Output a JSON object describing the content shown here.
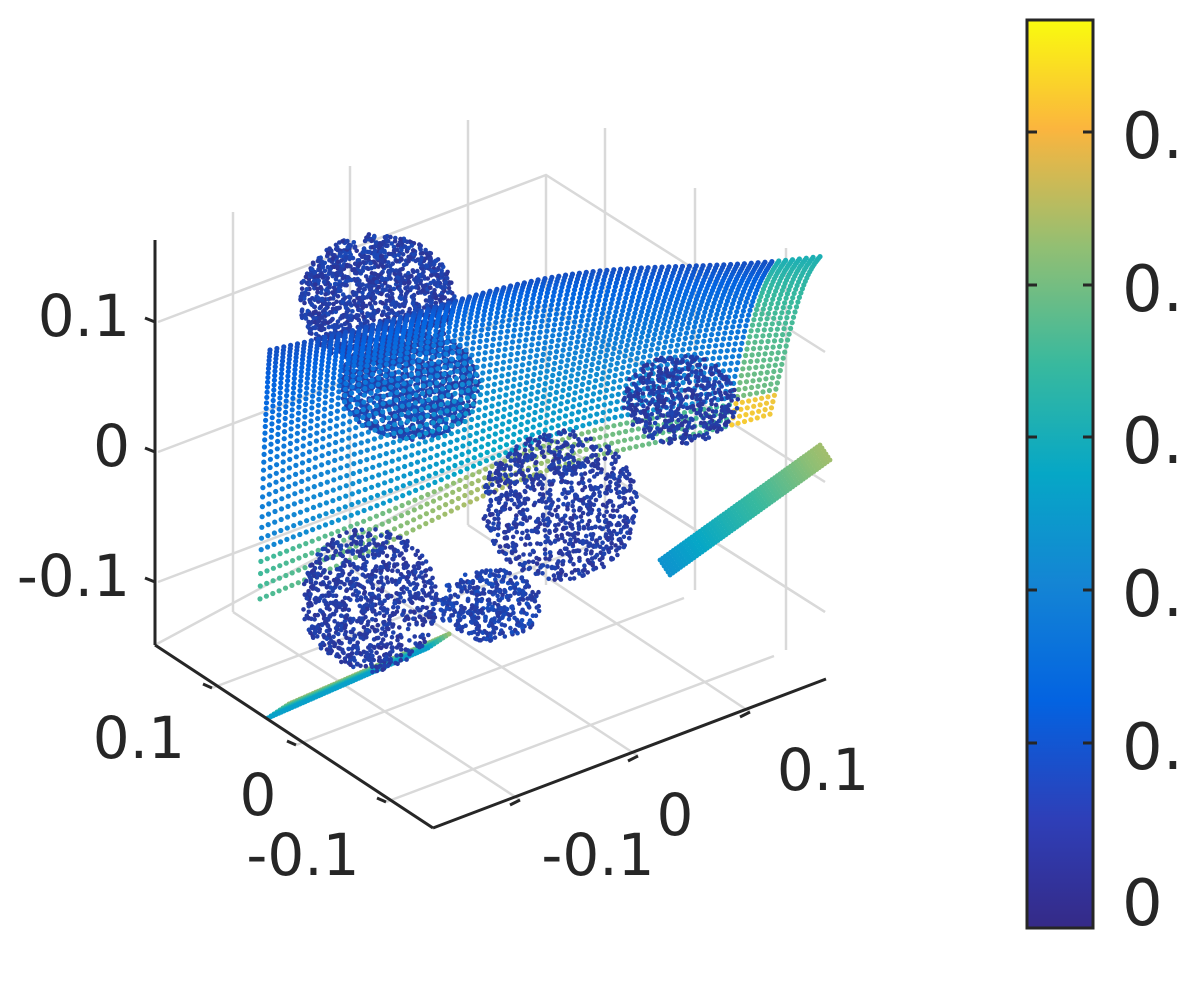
{
  "chart_data": {
    "type": "scatter",
    "title": "",
    "xlabel": "",
    "ylabel": "",
    "zlabel": "",
    "grid": true,
    "colormap": "parula",
    "colormap_stops": [
      "#352a87",
      "#0363e1",
      "#1485d4",
      "#06a7c6",
      "#38b99e",
      "#92bf73",
      "#d9ba56",
      "#fcce2e",
      "#f9fb0e"
    ],
    "axes": {
      "x": {
        "ticks": [
          -0.1,
          0,
          0.1
        ],
        "tick_labels": [
          "-0.1",
          "0",
          "0.1"
        ],
        "range": [
          -0.15,
          0.15
        ]
      },
      "y": {
        "ticks": [
          -0.1,
          0,
          0.1
        ],
        "tick_labels": [
          "-0.1",
          "0",
          "0.1"
        ],
        "range": [
          -0.15,
          0.15
        ]
      },
      "z": {
        "ticks": [
          -0.1,
          0,
          0.1
        ],
        "tick_labels": [
          "-0.1",
          "0",
          "0.1"
        ],
        "range": [
          -0.15,
          0.15
        ]
      }
    },
    "colorbar": {
      "location": "right",
      "tick_labels": [
        "0",
        "0.",
        "0.",
        "0.",
        "0.",
        "0."
      ],
      "range_min_label": "0"
    }
  }
}
